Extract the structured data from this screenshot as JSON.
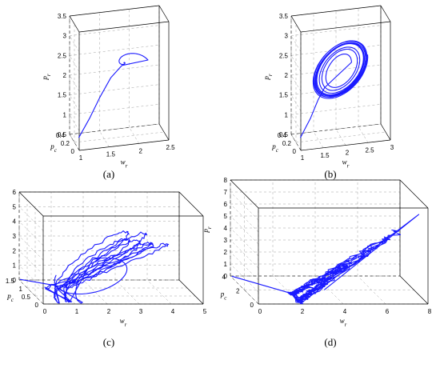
{
  "chart_data": [
    {
      "type": "line3d",
      "caption": "(a)",
      "view": "rotated",
      "xlabel": "w_r",
      "ylabel": "p_c",
      "zlabel": "p_r",
      "xlim": [
        1,
        2.5
      ],
      "ylim": [
        0,
        0.4
      ],
      "zlim": [
        0.5,
        3.5
      ],
      "xticks": [
        "1",
        "1.5",
        "2",
        "2.5"
      ],
      "yticks": [
        "0",
        "0.2",
        "0.4"
      ],
      "zticks": [
        "0.5",
        "1",
        "1.5",
        "2",
        "2.5",
        "3",
        "3.5"
      ],
      "series": [
        {
          "style": "spiral",
          "points": [
            [
              1.0,
              0.02,
              0.8
            ],
            [
              1.2,
              0.07,
              1.2
            ],
            [
              1.4,
              0.13,
              1.65
            ],
            [
              1.6,
              0.18,
              2.05
            ],
            [
              1.8,
              0.21,
              2.3
            ]
          ],
          "center": [
            1.84,
            0.22,
            2.35
          ],
          "r0": [
            0.4,
            0.04,
            0.4
          ],
          "turns": 3.8,
          "decay": 0.55
        }
      ]
    },
    {
      "type": "line3d",
      "caption": "(b)",
      "view": "rotated",
      "xlabel": "w_r",
      "ylabel": "p_c",
      "zlabel": "p_r",
      "xlim": [
        1,
        3
      ],
      "ylim": [
        0,
        0.4
      ],
      "zlim": [
        0.5,
        3.5
      ],
      "xticks": [
        "1",
        "1.5",
        "2",
        "2.5",
        "3"
      ],
      "yticks": [
        "0",
        "0.2",
        "0.4"
      ],
      "zticks": [
        "0.5",
        "1",
        "1.5",
        "2",
        "2.5",
        "3",
        "3.5"
      ],
      "series": [
        {
          "style": "limit-cycle",
          "points": [
            [
              1.0,
              0.02,
              0.8
            ],
            [
              1.25,
              0.07,
              1.2
            ],
            [
              1.45,
              0.12,
              1.6
            ],
            [
              1.62,
              0.16,
              1.85
            ]
          ],
          "center": [
            2.0,
            0.22,
            2.2
          ],
          "r0": [
            0.25,
            0.05,
            0.3
          ],
          "r1": [
            0.62,
            0.1,
            0.62
          ],
          "turns": 9
        }
      ]
    },
    {
      "type": "line3d",
      "caption": "(c)",
      "view": "front",
      "xlabel": "w_r",
      "ylabel": "p_c",
      "zlabel": "p_r",
      "xlim": [
        0,
        5
      ],
      "ylim": [
        0,
        1.5
      ],
      "zlim": [
        0,
        6
      ],
      "xticks": [
        "0",
        "1",
        "2",
        "3",
        "4",
        "5"
      ],
      "yticks": [
        "0",
        "0.5",
        "1",
        "1.5"
      ],
      "zticks": [
        "0",
        "1",
        "2",
        "3",
        "4",
        "5",
        "6"
      ],
      "series": [
        {
          "style": "chaotic",
          "seed": 3,
          "loops": 7
        }
      ]
    },
    {
      "type": "line3d",
      "caption": "(d)",
      "view": "front",
      "xlabel": "w_r",
      "ylabel": "p_c",
      "zlabel": "p_r",
      "xlim": [
        0,
        8
      ],
      "ylim": [
        0,
        4
      ],
      "zlim": [
        0,
        8
      ],
      "xticks": [
        "0",
        "2",
        "4",
        "6",
        "8"
      ],
      "yticks": [
        "0",
        "2",
        "4"
      ],
      "zticks": [
        "0",
        "1",
        "2",
        "3",
        "4",
        "5",
        "6",
        "7",
        "8"
      ],
      "series": [
        {
          "style": "bursting",
          "seed": 11,
          "loops": 9
        }
      ]
    }
  ]
}
